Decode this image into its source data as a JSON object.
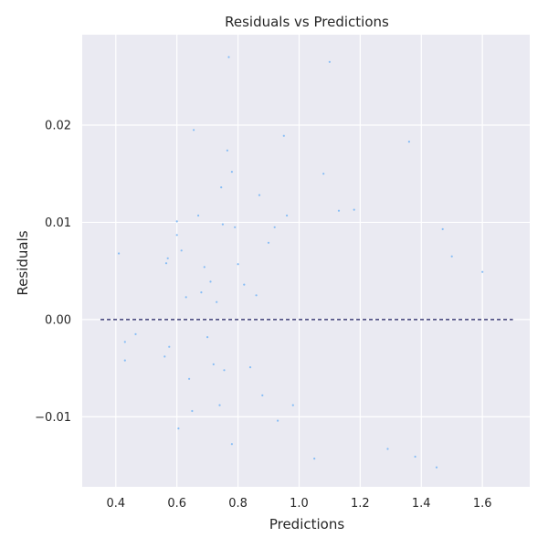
{
  "chart_data": {
    "type": "scatter",
    "title": "Residuals vs Predictions",
    "xlabel": "Predictions",
    "ylabel": "Residuals",
    "xlim": [
      0.29,
      1.755
    ],
    "ylim": [
      -0.0172,
      0.0293
    ],
    "xticks": [
      0.4,
      0.6,
      0.8,
      1.0,
      1.2,
      1.4,
      1.6
    ],
    "xtick_labels": [
      "0.4",
      "0.6",
      "0.8",
      "1.0",
      "1.2",
      "1.4",
      "1.6"
    ],
    "yticks": [
      -0.01,
      0.0,
      0.01,
      0.02
    ],
    "ytick_labels": [
      "−0.01",
      "0.00",
      "0.01",
      "0.02"
    ],
    "grid": true,
    "background_color": "#eaeaf2",
    "point_color": "#87bdf5",
    "reference_line": {
      "y": 0.0,
      "x_range": [
        0.35,
        1.7
      ],
      "style": "dashed",
      "color": "#1a1a5e"
    },
    "series": [
      {
        "points": [
          [
            0.41,
            0.0068
          ],
          [
            0.43,
            -0.0023
          ],
          [
            0.43,
            -0.0042
          ],
          [
            0.465,
            -0.0015
          ],
          [
            0.56,
            -0.0038
          ],
          [
            0.565,
            0.0058
          ],
          [
            0.57,
            0.0063
          ],
          [
            0.575,
            -0.0028
          ],
          [
            0.6,
            0.0101
          ],
          [
            0.6,
            0.0087
          ],
          [
            0.605,
            -0.0112
          ],
          [
            0.615,
            0.0071
          ],
          [
            0.63,
            0.0023
          ],
          [
            0.64,
            -0.0061
          ],
          [
            0.65,
            -0.0094
          ],
          [
            0.655,
            0.0195
          ],
          [
            0.67,
            0.0107
          ],
          [
            0.68,
            0.0028
          ],
          [
            0.69,
            0.0054
          ],
          [
            0.7,
            -0.0018
          ],
          [
            0.71,
            0.0039
          ],
          [
            0.72,
            -0.0046
          ],
          [
            0.73,
            0.0018
          ],
          [
            0.74,
            -0.0088
          ],
          [
            0.745,
            0.0136
          ],
          [
            0.75,
            0.0098
          ],
          [
            0.755,
            -0.0052
          ],
          [
            0.765,
            0.0174
          ],
          [
            0.77,
            0.027
          ],
          [
            0.78,
            0.0152
          ],
          [
            0.78,
            -0.0128
          ],
          [
            0.79,
            0.0095
          ],
          [
            0.8,
            0.0057
          ],
          [
            0.82,
            0.0036
          ],
          [
            0.84,
            -0.0049
          ],
          [
            0.86,
            0.0025
          ],
          [
            0.87,
            0.0128
          ],
          [
            0.88,
            -0.0078
          ],
          [
            0.9,
            0.0079
          ],
          [
            0.92,
            0.0095
          ],
          [
            0.93,
            -0.0104
          ],
          [
            0.95,
            0.0189
          ],
          [
            0.96,
            0.0107
          ],
          [
            0.98,
            -0.0088
          ],
          [
            1.05,
            -0.0143
          ],
          [
            1.08,
            0.015
          ],
          [
            1.1,
            0.0265
          ],
          [
            1.13,
            0.0112
          ],
          [
            1.18,
            0.0113
          ],
          [
            1.29,
            -0.0133
          ],
          [
            1.36,
            0.0183
          ],
          [
            1.38,
            -0.0141
          ],
          [
            1.45,
            -0.0152
          ],
          [
            1.47,
            0.0093
          ],
          [
            1.5,
            0.0065
          ],
          [
            1.6,
            0.0049
          ]
        ]
      }
    ]
  }
}
